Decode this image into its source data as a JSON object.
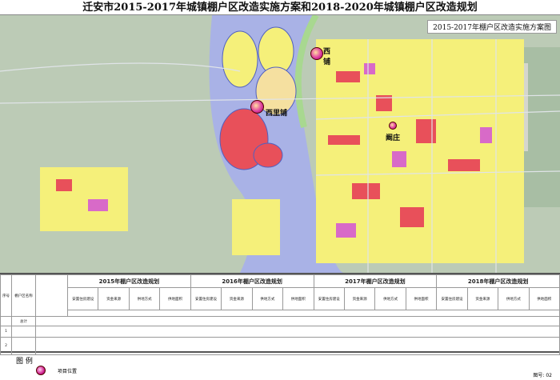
{
  "title": "迁安市2015-2017年城镇棚户区改造实施方案和2018-2020年城镇棚户区改造规划",
  "map": {
    "subtitle": "2015-2017年棚户区改造实施方案图",
    "locations": [
      {
        "name": "西铺"
      },
      {
        "name": "西里铺"
      },
      {
        "name": "阚庄"
      }
    ],
    "colors": {
      "background": "#b9c9b4",
      "river": "#a9b2e6",
      "residential": "#f5f07a",
      "commercial": "#e8505a",
      "public": "#d86ac8",
      "green": "#9ed080"
    }
  },
  "table": {
    "col_headers": {
      "index": "序号",
      "name": "棚户区名称",
      "total": "总计"
    },
    "years": [
      "2015年棚户区改造规划",
      "2016年棚户区改造规划",
      "2017年棚户区改造规划",
      "2018年棚户区改造规划"
    ],
    "sub_headers": [
      "安置住房建设",
      "资金来源",
      "供地方式",
      "供地面积"
    ],
    "rows": [
      {
        "index": "1"
      },
      {
        "index": "2"
      }
    ]
  },
  "legend": {
    "title": "图  例",
    "items": [
      {
        "label": "项目位置",
        "icon": "project-location-icon"
      }
    ]
  },
  "page_number": "图号: 02"
}
